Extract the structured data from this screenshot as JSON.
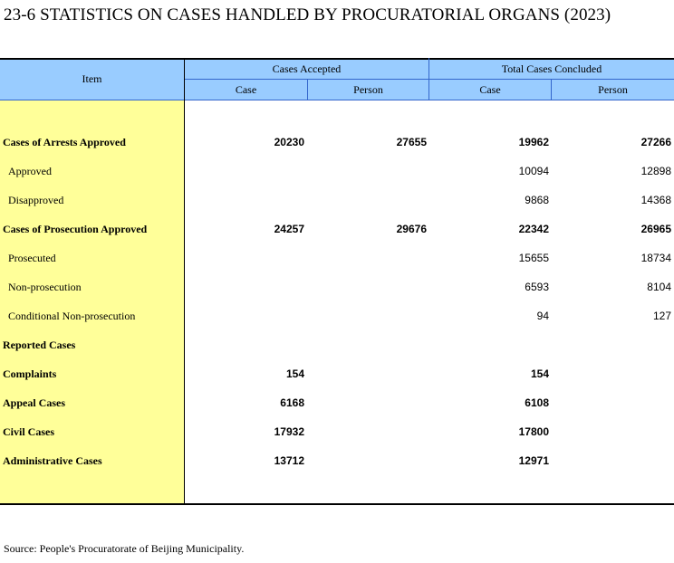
{
  "title": "23-6  STATISTICS ON CASES HANDLED BY PROCURATORIAL ORGANS (2023)",
  "header": {
    "item": "Item",
    "accepted": "Cases Accepted",
    "concluded": "Total Cases Concluded",
    "sub": [
      "Case",
      "Person",
      "Case",
      "Person"
    ]
  },
  "rows": [
    {
      "label": "Cases of Arrests Approved",
      "bold": true,
      "indent": false,
      "values": [
        "20230",
        "27655",
        "19962",
        "27266"
      ]
    },
    {
      "label": "Approved",
      "bold": false,
      "indent": true,
      "values": [
        "",
        "",
        "10094",
        "12898"
      ]
    },
    {
      "label": "Disapproved",
      "bold": false,
      "indent": true,
      "values": [
        "",
        "",
        "9868",
        "14368"
      ]
    },
    {
      "label": "Cases of Prosecution Approved",
      "bold": true,
      "indent": false,
      "values": [
        "24257",
        "29676",
        "22342",
        "26965"
      ]
    },
    {
      "label": "Prosecuted",
      "bold": false,
      "indent": true,
      "values": [
        "",
        "",
        "15655",
        "18734"
      ]
    },
    {
      "label": "Non-prosecution",
      "bold": false,
      "indent": true,
      "values": [
        "",
        "",
        "6593",
        "8104"
      ]
    },
    {
      "label": "Conditional Non-prosecution",
      "bold": false,
      "indent": true,
      "values": [
        "",
        "",
        "94",
        "127"
      ]
    },
    {
      "label": "Reported  Cases",
      "bold": true,
      "indent": false,
      "values": [
        "",
        "",
        "",
        ""
      ]
    },
    {
      "label": "Complaints",
      "bold": true,
      "indent": false,
      "values": [
        "154",
        "",
        "154",
        ""
      ]
    },
    {
      "label": "Appeal Cases",
      "bold": true,
      "indent": false,
      "values": [
        "6168",
        "",
        "6108",
        ""
      ]
    },
    {
      "label": "Civil Cases",
      "bold": true,
      "indent": false,
      "values": [
        "17932",
        "",
        "17800",
        ""
      ]
    },
    {
      "label": "Administrative Cases",
      "bold": true,
      "indent": false,
      "values": [
        "13712",
        "",
        "12971",
        ""
      ]
    }
  ],
  "source": "Source: People's Procuratorate of Beijing Municipality."
}
